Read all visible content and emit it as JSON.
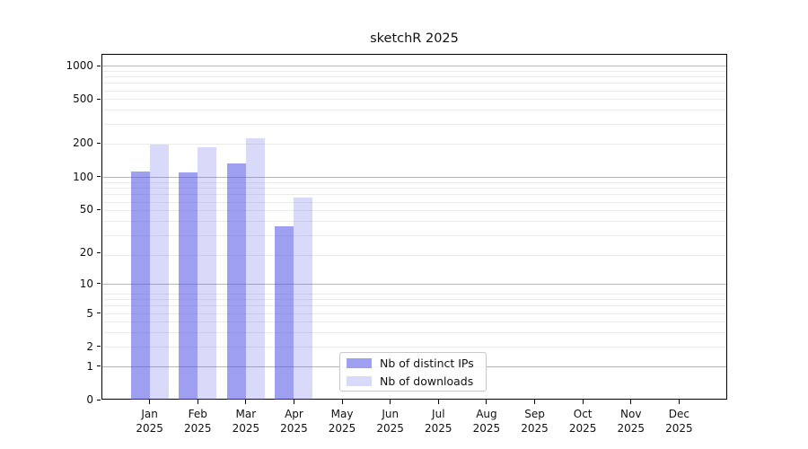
{
  "title": "sketchR 2025",
  "chart_data": {
    "type": "bar",
    "title": "sketchR 2025",
    "y_scale": "log10(1+value)",
    "grid": "both",
    "legend_position": "lower center",
    "months": [
      "Jan",
      "Feb",
      "Mar",
      "Apr",
      "May",
      "Jun",
      "Jul",
      "Aug",
      "Sep",
      "Oct",
      "Nov",
      "Dec"
    ],
    "year": "2025",
    "series": [
      {
        "name": "Nb of distinct IPs",
        "color": "rgba(80,80,232,0.55)",
        "values": [
          113,
          112,
          133,
          36,
          0,
          0,
          0,
          0,
          0,
          0,
          0,
          0
        ]
      },
      {
        "name": "Nb of downloads",
        "color": "rgba(80,80,232,0.22)",
        "values": [
          199,
          188,
          224,
          65,
          0,
          0,
          0,
          0,
          0,
          0,
          0,
          0
        ]
      }
    ],
    "y_ticks": [
      1000,
      500,
      200,
      100,
      50,
      20,
      10,
      5,
      2,
      1,
      0
    ],
    "major_gridlines_at": [
      1,
      10,
      100,
      1000
    ],
    "ylim": [
      0,
      1275
    ]
  },
  "legend": {
    "items": [
      "Nb of distinct IPs",
      "Nb of downloads"
    ]
  },
  "colors": {
    "bar_distinct_ips": "rgba(80,80,232,0.55)",
    "bar_downloads": "rgba(80,80,232,0.22)",
    "major_grid": "#b6b6b6",
    "minor_grid": "#ebebeb",
    "axis": "#000000"
  }
}
